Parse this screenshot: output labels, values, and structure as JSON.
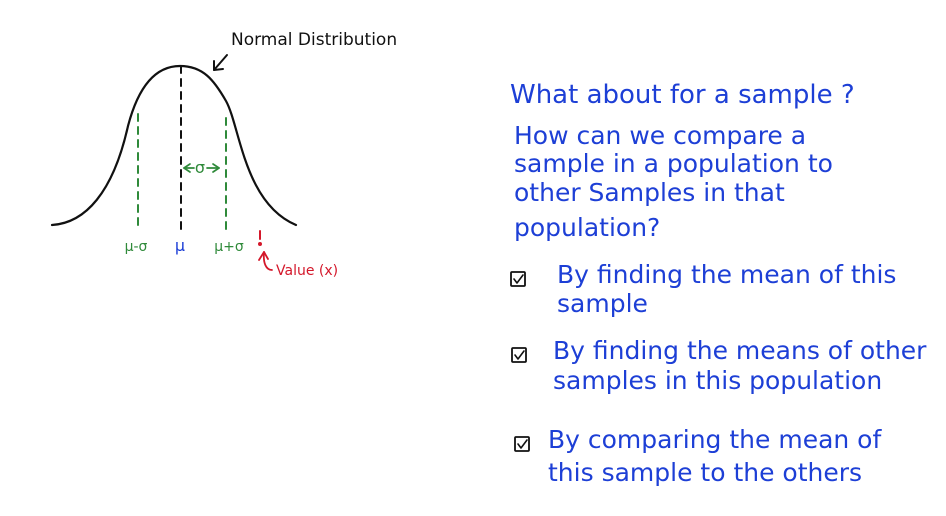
{
  "diagram": {
    "annotation": "Normal Distribution",
    "labels": {
      "mu_minus_sigma": "μ-σ",
      "mu": "μ",
      "mu_plus_sigma": "μ+σ",
      "sigma": "σ",
      "value": "Value (x)"
    },
    "colors": {
      "curve": "#111111",
      "mean": "#111111",
      "std_dev": "#2f8a3a",
      "value": "#d4182b",
      "text": "#1d3fd6"
    }
  },
  "notes": {
    "heading": "What about for a sample ?",
    "question_lines": [
      "How can we compare a",
      "sample in a population to",
      "other Samples in that",
      "population?"
    ],
    "items": [
      {
        "checked": true,
        "lines": [
          "By finding the mean of this",
          "sample"
        ]
      },
      {
        "checked": true,
        "lines": [
          "By finding the means of other",
          "samples in this population"
        ]
      },
      {
        "checked": true,
        "lines": [
          "By comparing the mean of",
          "this sample to the others"
        ]
      }
    ]
  }
}
